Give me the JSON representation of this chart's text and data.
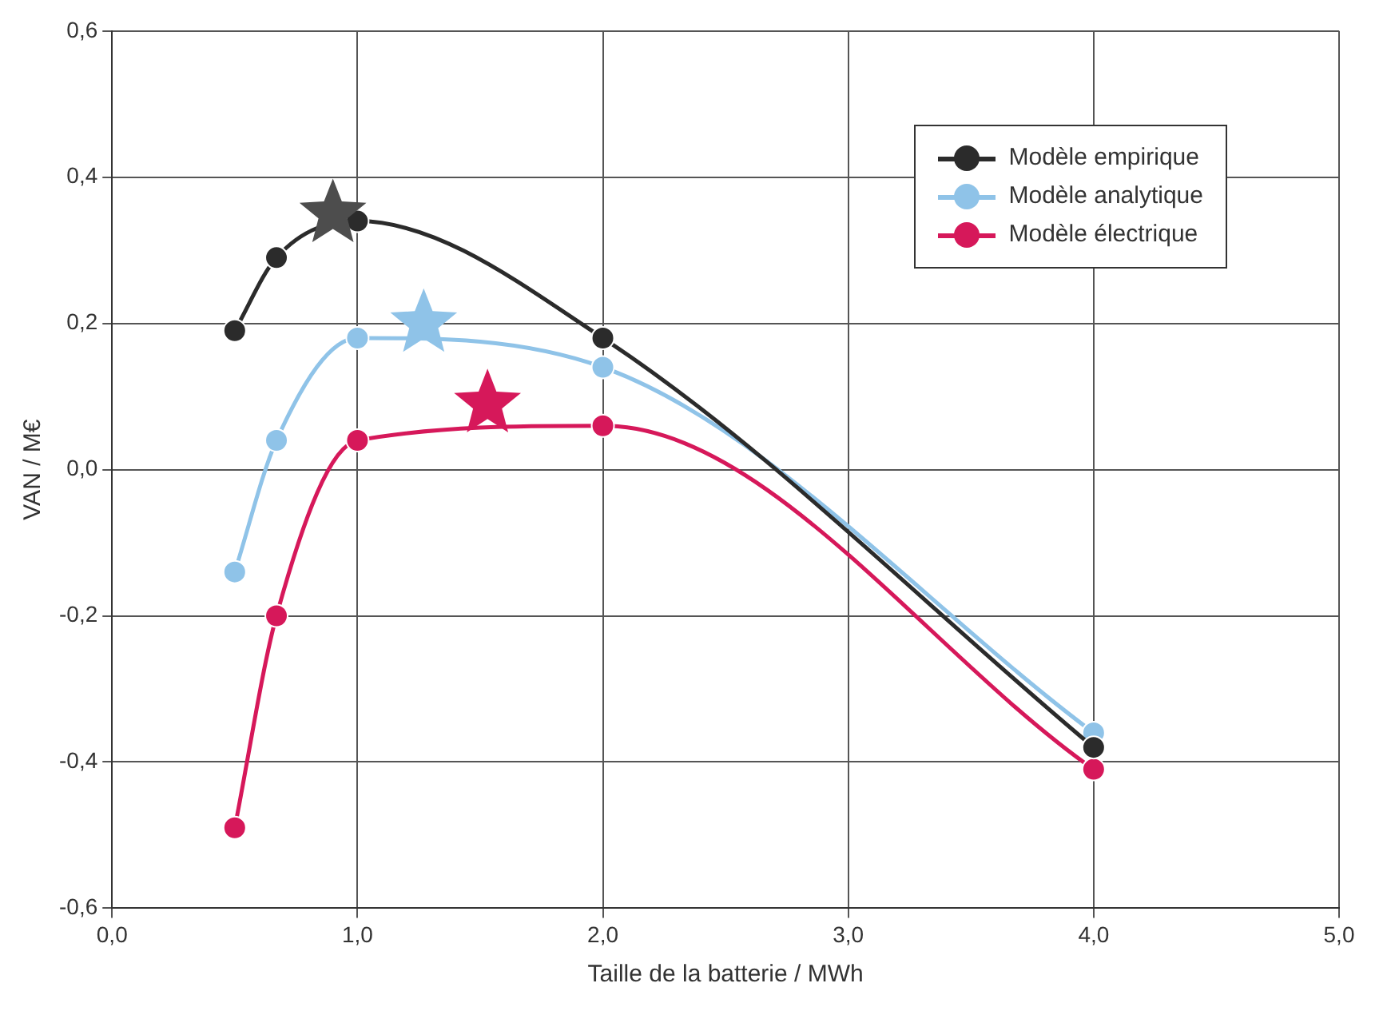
{
  "chart_data": {
    "type": "line",
    "xlabel": "Taille de la batterie / MWh",
    "ylabel": "VAN / M€",
    "xlim": [
      0,
      5
    ],
    "xticks": [
      {
        "value": 0,
        "label": "0,0"
      },
      {
        "value": 1,
        "label": "1,0"
      },
      {
        "value": 2,
        "label": "2,0"
      },
      {
        "value": 3,
        "label": "3,0"
      },
      {
        "value": 4,
        "label": "4,0"
      },
      {
        "value": 5,
        "label": "5,0"
      }
    ],
    "ylim": [
      -0.6,
      0.6
    ],
    "yticks": [
      {
        "value": -0.6,
        "label": "-0,6"
      },
      {
        "value": -0.4,
        "label": "-0,4"
      },
      {
        "value": -0.2,
        "label": "-0,2"
      },
      {
        "value": 0,
        "label": "0,0"
      },
      {
        "value": 0.2,
        "label": "0,2"
      },
      {
        "value": 0.4,
        "label": "0,4"
      },
      {
        "value": 0.6,
        "label": "0,6"
      }
    ],
    "grid": true,
    "legend": "top right",
    "marker": "circle",
    "line_style": "solid",
    "series": [
      {
        "name": "Modèle empirique",
        "color": "#2b2b2b",
        "x": [
          0.5,
          0.67,
          1.0,
          2.0,
          4.0
        ],
        "values": [
          0.19,
          0.29,
          0.34,
          0.18,
          -0.38
        ]
      },
      {
        "name": "Modèle analytique",
        "color": "#8fc3e8",
        "x": [
          0.5,
          0.67,
          1.0,
          2.0,
          4.0
        ],
        "values": [
          -0.14,
          0.04,
          0.18,
          0.14,
          -0.36
        ]
      },
      {
        "name": "Modèle électrique",
        "color": "#d6185a",
        "x": [
          0.5,
          0.67,
          1.0,
          2.0,
          4.0
        ],
        "values": [
          -0.49,
          -0.2,
          0.04,
          0.06,
          -0.41
        ]
      },
      {
        "type": "scatter",
        "marker": "star",
        "color": "#4d4d4d",
        "x": [
          0.9
        ],
        "values": [
          0.35
        ]
      },
      {
        "type": "scatter",
        "marker": "star",
        "color": "#8fc3e8",
        "x": [
          1.27
        ],
        "values": [
          0.2
        ]
      },
      {
        "type": "scatter",
        "marker": "star",
        "color": "#d6185a",
        "x": [
          1.53
        ],
        "values": [
          0.09
        ]
      }
    ]
  }
}
